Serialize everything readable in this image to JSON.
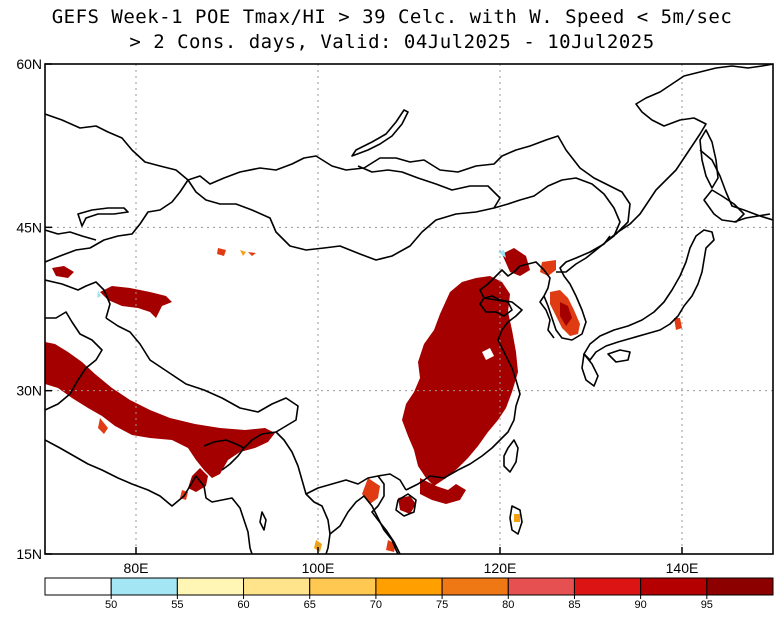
{
  "title": {
    "line1": "GEFS Week-1 POE Tmax/HI > 39 Celc. with W. Speed < 5m/sec",
    "line2": "> 2 Cons. days, Valid: 04Jul2025 - 10Jul2025"
  },
  "map": {
    "lon_range": [
      70,
      150
    ],
    "lat_range": [
      15,
      60
    ],
    "lat_ticks": [
      {
        "value": 60,
        "label": "60N"
      },
      {
        "value": 45,
        "label": "45N"
      },
      {
        "value": 30,
        "label": "30N"
      },
      {
        "value": 15,
        "label": "15N"
      }
    ],
    "lon_ticks": [
      {
        "value": 80,
        "label": "80E"
      },
      {
        "value": 100,
        "label": "100E"
      },
      {
        "value": 120,
        "label": "120E"
      },
      {
        "value": 140,
        "label": "140E"
      }
    ],
    "grid": "dotted",
    "coastline_color": "#000000",
    "shading_colors": {
      "high": "#a50000",
      "mid": "#e03c14",
      "low": "#f5a010",
      "edge": "#9fe6f5"
    }
  },
  "colorbar": {
    "labels": [
      "50",
      "55",
      "60",
      "65",
      "70",
      "75",
      "80",
      "85",
      "90",
      "95"
    ],
    "colors": [
      "#ffffff",
      "#a5e6f5",
      "#fff5b4",
      "#ffe48c",
      "#ffc850",
      "#ffa000",
      "#f07814",
      "#e65050",
      "#dc1414",
      "#b40000",
      "#8c0000"
    ]
  }
}
